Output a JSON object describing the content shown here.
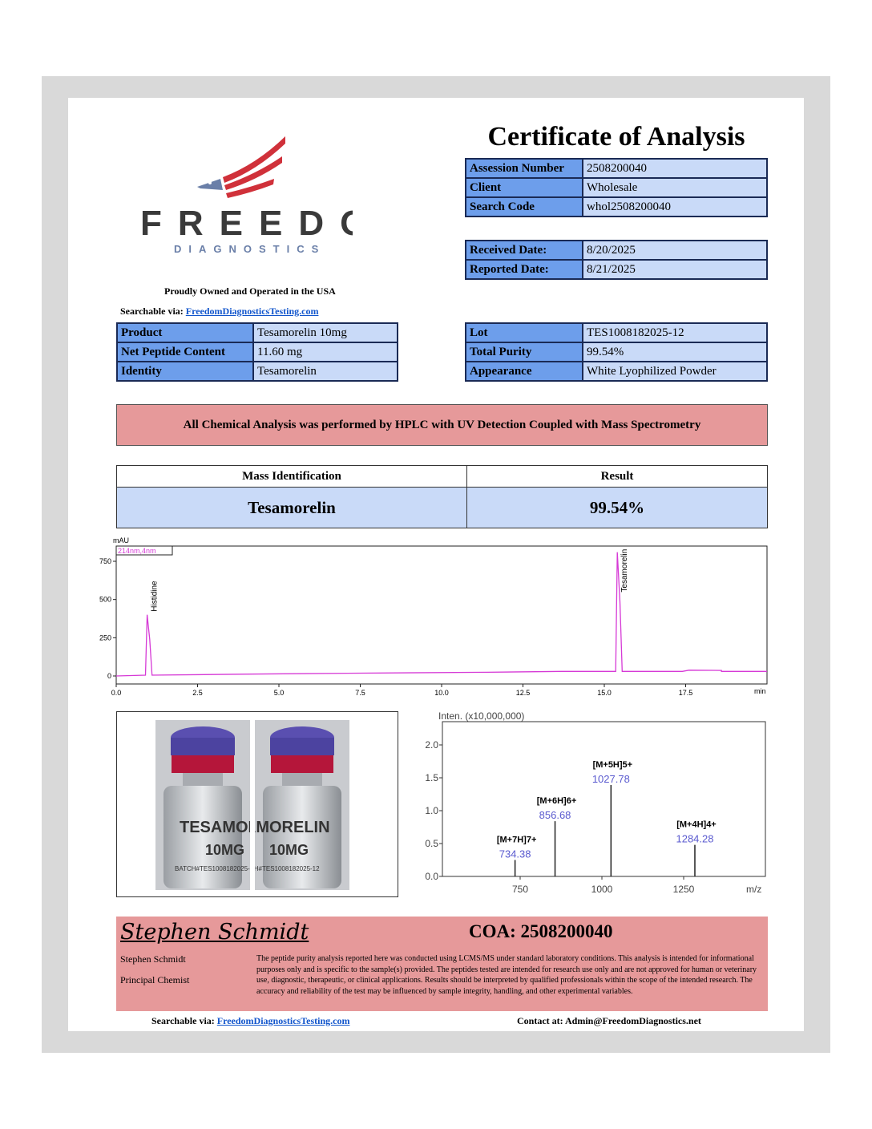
{
  "header": {
    "title": "Certificate of Analysis"
  },
  "logo": {
    "name": "FREEDOM",
    "sub": "DIAGNOSTICS",
    "colors": {
      "red": "#d0313a",
      "blue": "#6a7fa8",
      "text": "#3a3a3a"
    }
  },
  "tagline": "Proudly Owned and Operated in the USA",
  "searchable": {
    "label": "Searchable via:",
    "link": "FreedomDiagnosticsTesting.com"
  },
  "info_table": [
    {
      "label": "Assession Number",
      "value": "2508200040"
    },
    {
      "label": "Client",
      "value": "Wholesale"
    },
    {
      "label": "Search Code",
      "value": "whol2508200040"
    }
  ],
  "dates_table": [
    {
      "label": "Received Date:",
      "value": "8/20/2025"
    },
    {
      "label": "Reported Date:",
      "value": "8/21/2025"
    }
  ],
  "product_table": [
    {
      "label": "Product",
      "value": "Tesamorelin 10mg"
    },
    {
      "label": "Net Peptide Content",
      "value": "11.60 mg"
    },
    {
      "label": "Identity",
      "value": "Tesamorelin"
    }
  ],
  "lot_table": [
    {
      "label": "Lot",
      "value": "TES1008182025-12"
    },
    {
      "label": "Total Purity",
      "value": "99.54%"
    },
    {
      "label": "Appearance",
      "value": "White Lyophilized Powder"
    }
  ],
  "method_banner": "All Chemical Analysis was performed by HPLC with UV Detection Coupled with Mass Spectrometry",
  "results": {
    "headers": [
      "Mass Identification",
      "Result"
    ],
    "row": [
      "Tesamorelin",
      "99.54%"
    ]
  },
  "vial_label": {
    "name": "TESAMORELIN",
    "dose": "10MG",
    "batch": "BATCH#TES1008182025-12"
  },
  "chart_data": [
    {
      "type": "line",
      "ylabel": "mAU",
      "xlabel": "min",
      "legend": "214nm,4nm",
      "xlim": [
        0,
        20
      ],
      "ylim": [
        0,
        850
      ],
      "xticks": [
        "0.0",
        "2.5",
        "5.0",
        "7.5",
        "10.0",
        "12.5",
        "15.0",
        "17.5"
      ],
      "yticks": [
        "0",
        "250",
        "500",
        "750"
      ],
      "color": "#d63ad6",
      "peaks": [
        {
          "name": "Histidine",
          "x": 0.95,
          "y": 400
        },
        {
          "name": "Tesamorelin",
          "x": 15.4,
          "y": 810
        }
      ],
      "baseline": [
        [
          0,
          0
        ],
        [
          4.1,
          0
        ],
        [
          4.1,
          12
        ],
        [
          7.1,
          12
        ],
        [
          7.1,
          18
        ],
        [
          11.4,
          18
        ],
        [
          11.4,
          24
        ],
        [
          13.7,
          24
        ],
        [
          13.7,
          30
        ],
        [
          17.4,
          30
        ],
        [
          17.6,
          38
        ],
        [
          18.6,
          36
        ],
        [
          18.6,
          30
        ],
        [
          20,
          30
        ]
      ]
    },
    {
      "type": "bar",
      "ylabel": "Inten. (x10,000,000)",
      "xlabel": "m/z",
      "xlim": [
        550,
        1540
      ],
      "ylim": [
        0,
        2.3
      ],
      "xticks": [
        "750",
        "1000",
        "1250"
      ],
      "yticks": [
        "0.0",
        "0.5",
        "1.0",
        "1.5",
        "2.0"
      ],
      "peaks": [
        {
          "ion": "[M+7H]7+",
          "mz": "734.38",
          "x": 734.38,
          "y": 0.25
        },
        {
          "ion": "[M+6H]6+",
          "mz": "856.68",
          "x": 856.68,
          "y": 0.84
        },
        {
          "ion": "[M+5H]5+",
          "mz": "1027.78",
          "x": 1027.78,
          "y": 1.39
        },
        {
          "ion": "[M+4H]4+",
          "mz": "1284.28",
          "x": 1284.28,
          "y": 0.48
        }
      ],
      "label_color": "#5a5acf"
    }
  ],
  "signature": {
    "script": "Stephen Schmidt",
    "name": "Stephen Schmidt",
    "role": "Principal Chemist"
  },
  "coa": "COA: 2508200040",
  "disclaimer": "The peptide purity analysis reported here was conducted using LCMS/MS under standard laboratory conditions. This analysis is intended for informational purposes only and is specific to the sample(s) provided. The peptides tested are intended for research use only and are not approved for human or veterinary use, diagnostic, therapeutic, or clinical applications. Results should be interpreted by qualified professionals within the scope of the intended research. The accuracy and reliability of the test may be influenced by sample integrity, handling, and other experimental variables.",
  "footer": {
    "searchable_label": "Searchable via:",
    "link": "FreedomDiagnosticsTesting.com",
    "contact": "Contact at: Admin@FreedomDiagnostics.net"
  }
}
